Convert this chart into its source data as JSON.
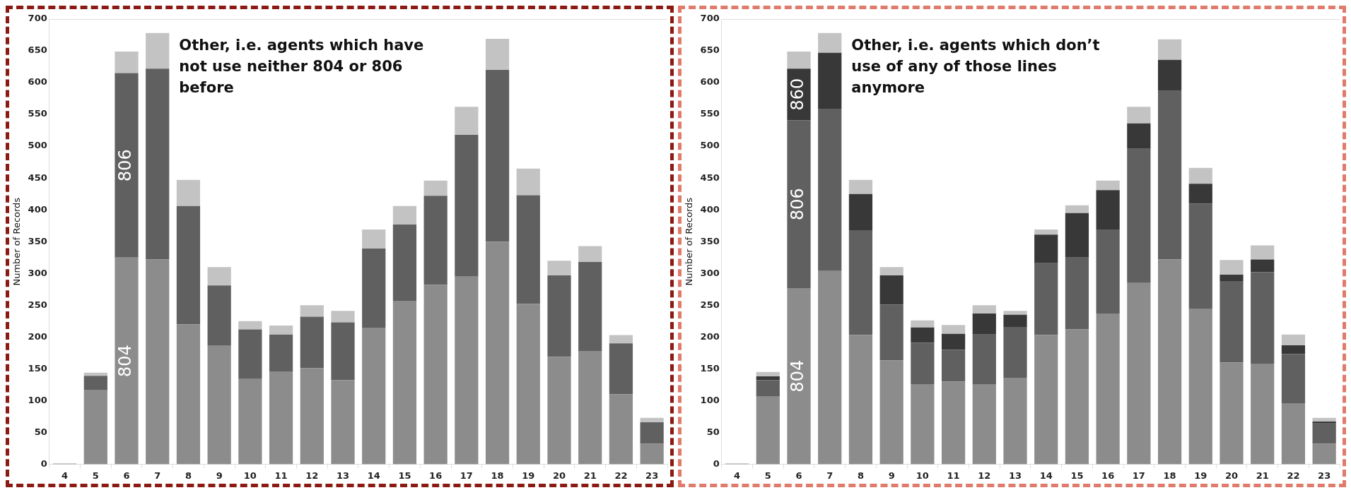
{
  "chart_data": [
    {
      "type": "bar",
      "stacked": true,
      "ylabel": "Number of Records",
      "categories": [
        "4",
        "5",
        "6",
        "7",
        "8",
        "9",
        "10",
        "11",
        "12",
        "13",
        "14",
        "15",
        "16",
        "17",
        "18",
        "19",
        "20",
        "21",
        "22",
        "23"
      ],
      "series": [
        {
          "name": "804",
          "color": "#8c8c8c",
          "values": [
            1,
            117,
            325,
            322,
            220,
            187,
            134,
            146,
            151,
            132,
            214,
            257,
            282,
            295,
            350,
            252,
            169,
            178,
            110,
            32
          ]
        },
        {
          "name": "806",
          "color": "#606060",
          "values": [
            0,
            22,
            290,
            300,
            186,
            94,
            78,
            58,
            81,
            91,
            125,
            120,
            140,
            223,
            270,
            171,
            128,
            140,
            80,
            34
          ]
        },
        {
          "color": "#c3c3c3",
          "values": [
            0,
            5,
            34,
            56,
            41,
            29,
            13,
            14,
            18,
            18,
            30,
            29,
            24,
            44,
            49,
            42,
            23,
            25,
            13,
            7
          ]
        }
      ],
      "ylim": [
        0,
        700
      ],
      "yticks": [
        0,
        50,
        100,
        150,
        200,
        250,
        300,
        350,
        400,
        450,
        500,
        550,
        600,
        650,
        700
      ],
      "grid": false,
      "legend": false,
      "annotations": [
        "Other, i.e. agents which have not use neither 804 or 806 before"
      ]
    },
    {
      "type": "bar",
      "stacked": true,
      "ylabel": "Number of Records",
      "categories": [
        "4",
        "5",
        "6",
        "7",
        "8",
        "9",
        "10",
        "11",
        "12",
        "13",
        "14",
        "15",
        "16",
        "17",
        "18",
        "19",
        "20",
        "21",
        "22",
        "23"
      ],
      "series": [
        {
          "name": "804",
          "color": "#8c8c8c",
          "values": [
            1,
            107,
            277,
            304,
            203,
            163,
            126,
            130,
            126,
            136,
            203,
            212,
            237,
            285,
            322,
            244,
            160,
            158,
            95,
            32
          ]
        },
        {
          "name": "806",
          "color": "#606060",
          "values": [
            0,
            25,
            264,
            255,
            165,
            88,
            65,
            50,
            78,
            80,
            113,
            113,
            132,
            211,
            265,
            166,
            128,
            144,
            78,
            32
          ]
        },
        {
          "name": "860",
          "color": "#383838",
          "values": [
            0,
            6,
            81,
            88,
            57,
            46,
            24,
            25,
            33,
            19,
            45,
            70,
            62,
            40,
            49,
            31,
            10,
            20,
            14,
            3
          ]
        },
        {
          "color": "#c3c3c3",
          "values": [
            0,
            7,
            27,
            31,
            22,
            13,
            11,
            14,
            13,
            6,
            8,
            12,
            15,
            26,
            32,
            25,
            23,
            22,
            17,
            6
          ]
        }
      ],
      "ylim": [
        0,
        700
      ],
      "yticks": [
        0,
        50,
        100,
        150,
        200,
        250,
        300,
        350,
        400,
        450,
        500,
        550,
        600,
        650,
        700
      ],
      "grid": false,
      "legend": false,
      "annotations": [
        "Other, i.e. agents which don’t use of any of those lines anymore"
      ]
    }
  ]
}
